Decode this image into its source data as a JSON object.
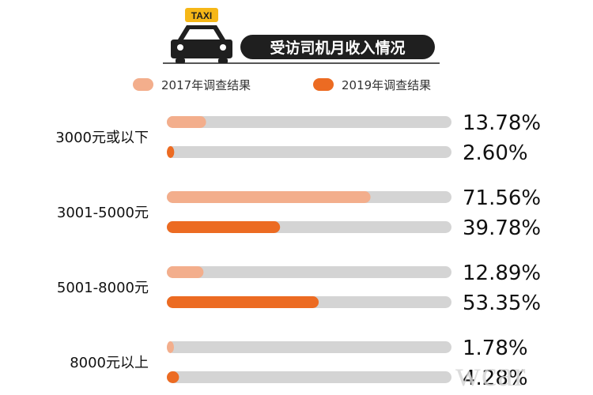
{
  "header": {
    "taxi_sign": "TAXI",
    "title": "受访司机月收入情况"
  },
  "watermark": "wcar",
  "colors": {
    "series_2017": "#f3ae8c",
    "series_2019": "#ec6b22",
    "track": "#d4d4d4",
    "title_bg": "#1f1f1f",
    "taxi_sign": "#f6b717"
  },
  "chart_data": {
    "type": "bar",
    "orientation": "horizontal",
    "categories": [
      "3000元或以下",
      "3001-5000元",
      "5001-8000元",
      "8000元以上"
    ],
    "series": [
      {
        "name": "2017年调查结果",
        "values": [
          13.78,
          71.56,
          12.89,
          1.78
        ],
        "labels": [
          "13.78%",
          "71.56%",
          "12.89%",
          "1.78%"
        ]
      },
      {
        "name": "2019年调查结果",
        "values": [
          2.6,
          39.78,
          53.35,
          4.28
        ],
        "labels": [
          "2.60%",
          "39.78%",
          "53.35%",
          "4.28%"
        ]
      }
    ],
    "xlim": [
      0,
      100
    ],
    "legend_position": "top",
    "grid": false
  }
}
